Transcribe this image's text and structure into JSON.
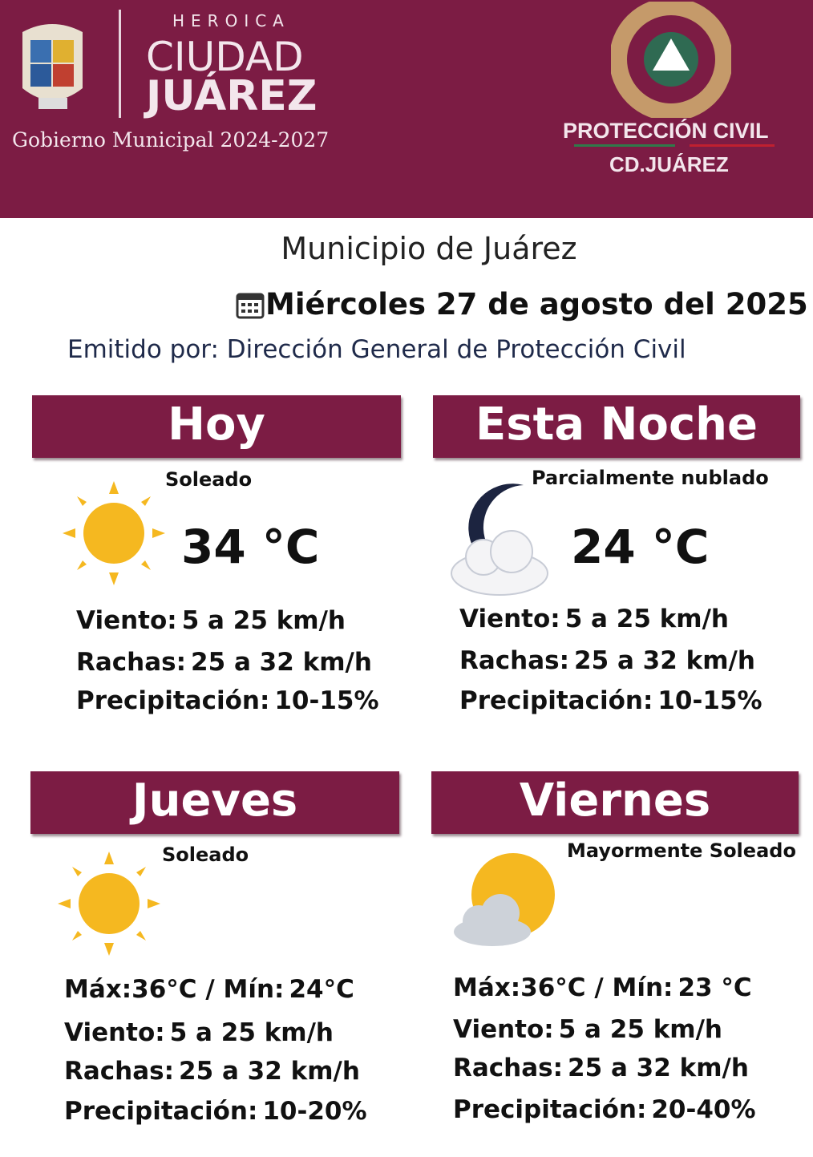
{
  "header": {
    "city_small": "HEROICA",
    "city_line1": "CIUDAD",
    "city_line2": "JUÁREZ",
    "government": "Gobierno Municipal 2024-2027",
    "pc_line1": "PROTECCIÓN CIVIL",
    "pc_line2": "CD.JUÁREZ",
    "brand_color": "#7c1c44"
  },
  "title": "Municipio de Juárez",
  "date": "Miércoles 27 de agosto del 2025",
  "issued_by": "Emitido por: Dirección General de Protección Civil",
  "labels": {
    "wind": "Viento:",
    "gusts": "Rachas:",
    "precip": "Precipitación:",
    "max": "Máx:",
    "min": "Mín:"
  },
  "panels": [
    {
      "title": "Hoy",
      "condition": "Soleado",
      "icon": "sun-icon",
      "temp": "34 °C",
      "wind": "5 a 25 km/h",
      "gusts": "25 a 32  km/h",
      "precip": "10-15%"
    },
    {
      "title": "Esta Noche",
      "condition": "Parcialmente  nublado",
      "icon": "moon-cloud-icon",
      "temp": "24 °C",
      "wind": "5 a 25 km/h",
      "gusts": "25 a 32 km/h",
      "precip": "10-15%"
    },
    {
      "title": "Jueves",
      "condition": "Soleado",
      "icon": "sun-icon",
      "max": "36°C /",
      "min": "24°C",
      "wind": "5 a 25 km/h",
      "gusts": "25 a 32 km/h",
      "precip": "10-20%"
    },
    {
      "title": "Viernes",
      "condition": "Mayormente Soleado",
      "icon": "sun-cloud-icon",
      "max": "36°C /",
      "min": "23 °C",
      "wind": "5 a 25 km/h",
      "gusts": "25 a 32 km/h",
      "precip": "20-40%"
    }
  ]
}
